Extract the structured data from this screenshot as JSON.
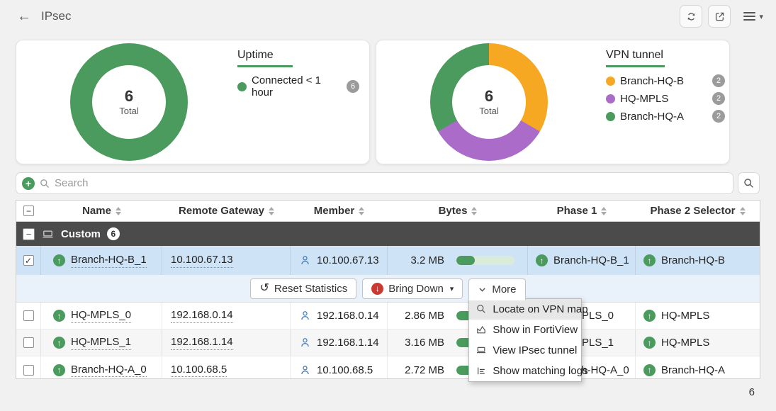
{
  "topbar": {
    "title": "IPsec"
  },
  "chart_data": [
    {
      "type": "pie",
      "title": "Uptime",
      "labels": [
        "Connected < 1 hour"
      ],
      "values": [
        6
      ],
      "colors": [
        "#4a9b5d"
      ],
      "center_value": "6",
      "center_label": "Total",
      "legend_position": "right"
    },
    {
      "type": "pie",
      "title": "VPN tunnel",
      "labels": [
        "Branch-HQ-B",
        "HQ-MPLS",
        "Branch-HQ-A"
      ],
      "values": [
        2,
        2,
        2
      ],
      "colors": [
        "#f7a823",
        "#aa6bc9",
        "#4a9b5d"
      ],
      "center_value": "6",
      "center_label": "Total",
      "legend_position": "right"
    }
  ],
  "search": {
    "placeholder": "Search"
  },
  "table": {
    "headers": [
      "Name",
      "Remote Gateway",
      "Member",
      "Bytes",
      "Phase 1",
      "Phase 2 Selector"
    ],
    "group": {
      "label": "Custom",
      "count": "6"
    },
    "rows": [
      {
        "name": "Branch-HQ-B_1",
        "remote_gateway": "10.100.67.13",
        "member": "10.100.67.13",
        "bytes": "3.2 MB",
        "bytes_pct": 32,
        "phase1": "Branch-HQ-B_1",
        "phase2": "Branch-HQ-B"
      },
      {
        "name": "HQ-MPLS_0",
        "remote_gateway": "192.168.0.14",
        "member": "192.168.0.14",
        "bytes": "2.86 MB",
        "bytes_pct": 29,
        "phase1": "HQ-MPLS_0",
        "phase2": "HQ-MPLS"
      },
      {
        "name": "HQ-MPLS_1",
        "remote_gateway": "192.168.1.14",
        "member": "192.168.1.14",
        "bytes": "3.16 MB",
        "bytes_pct": 31,
        "phase1": "HQ-MPLS_1",
        "phase2": "HQ-MPLS"
      },
      {
        "name": "Branch-HQ-A_0",
        "remote_gateway": "10.100.68.5",
        "member": "10.100.68.5",
        "bytes": "2.72 MB",
        "bytes_pct": 27,
        "phase1": "Branch-HQ-A_0",
        "phase2": "Branch-HQ-A"
      }
    ]
  },
  "toolbar": {
    "reset_label": "Reset Statistics",
    "bring_down_label": "Bring Down",
    "more_label": "More"
  },
  "context_menu": {
    "items": [
      {
        "label": "Locate on VPN map",
        "icon": "search-icon",
        "highlighted": true
      },
      {
        "label": "Show in FortiView",
        "icon": "chart-icon",
        "highlighted": false
      },
      {
        "label": "View IPsec tunnel",
        "icon": "monitor-icon",
        "highlighted": false
      },
      {
        "label": "Show matching logs",
        "icon": "logs-icon",
        "highlighted": false
      }
    ]
  },
  "footer": {
    "total_count": "6"
  },
  "colors": {
    "green": "#4a9b5d",
    "orange": "#f7a823",
    "purple": "#aa6bc9",
    "selected_row": "#cfe3f7",
    "group_row": "#4b4b4b",
    "badge_gray": "#9b9b9b",
    "bring_down_red": "#cb3a32"
  }
}
